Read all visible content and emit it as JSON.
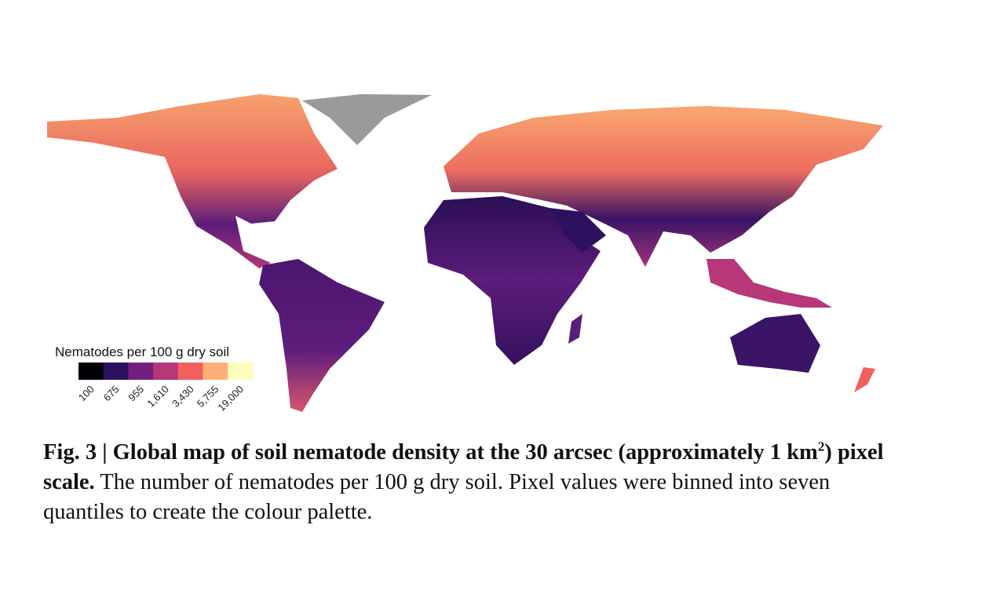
{
  "legend": {
    "title": "Nematodes per 100 g dry soil",
    "colors": [
      "#000004",
      "#2c115f",
      "#721f81",
      "#b73779",
      "#f1605d",
      "#feaf77",
      "#fcfdbf"
    ],
    "ticks": [
      "100",
      "675",
      "955",
      "1,610",
      "3,430",
      "5,755",
      "19,000"
    ]
  },
  "caption": {
    "figure": "Fig. 3",
    "separator": "|",
    "title": [
      "Global map of soil nematode density at the 30 arcsec (approximately 1 km",
      "2",
      ") pixel scale."
    ],
    "text": "The number of nematodes per 100 g dry soil. Pixel values were binned into seven quantiles to create the colour palette."
  }
}
